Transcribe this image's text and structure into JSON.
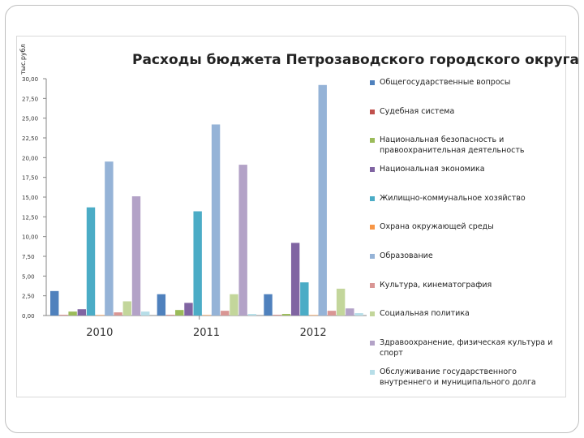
{
  "chart_data": {
    "type": "bar",
    "title": "Расходы бюджета Петрозаводского городского округа",
    "ylabel": "тыс.рубл",
    "ylim": [
      0,
      30
    ],
    "yticks": [
      "0,00",
      "2,50",
      "5,00",
      "7,50",
      "10,00",
      "12,50",
      "15,00",
      "17,50",
      "20,00",
      "22,50",
      "25,00",
      "27,50",
      "30,00"
    ],
    "categories": [
      "2010",
      "2011",
      "2012"
    ],
    "legend_position": "right",
    "series": [
      {
        "name": "Общегосударственные вопросы",
        "color": "#4f81bd",
        "values": [
          3.1,
          2.7,
          2.7
        ]
      },
      {
        "name": "Судебная система",
        "color": "#c0504d",
        "values": [
          0.02,
          0.02,
          0.02
        ]
      },
      {
        "name": "Национальная безопасность и правоохранительная деятельность",
        "color": "#9bbb59",
        "values": [
          0.5,
          0.7,
          0.2
        ]
      },
      {
        "name": "Национальная экономика",
        "color": "#8064a2",
        "values": [
          0.8,
          1.6,
          9.2
        ]
      },
      {
        "name": "Жилищно-коммунальное хозяйство",
        "color": "#4bacc6",
        "values": [
          13.7,
          13.2,
          4.2
        ]
      },
      {
        "name": "Охрана окружающей среды",
        "color": "#f79646",
        "values": [
          0.02,
          0.02,
          0.02
        ]
      },
      {
        "name": "Образование",
        "color": "#95b3d7",
        "values": [
          19.5,
          24.2,
          29.2
        ]
      },
      {
        "name": "Культура, кинематография",
        "color": "#d99694",
        "values": [
          0.4,
          0.6,
          0.6
        ]
      },
      {
        "name": "Социальная политика",
        "color": "#c3d69b",
        "values": [
          1.8,
          2.7,
          3.4
        ]
      },
      {
        "name": "Здравоохранение, физическая культура и спорт",
        "color": "#b3a2c7",
        "values": [
          15.1,
          19.1,
          0.9
        ]
      },
      {
        "name": "Обслуживание государственного внутреннего и муниципального долга",
        "color": "#b7dee8",
        "values": [
          0.5,
          0.2,
          0.3
        ]
      }
    ]
  }
}
